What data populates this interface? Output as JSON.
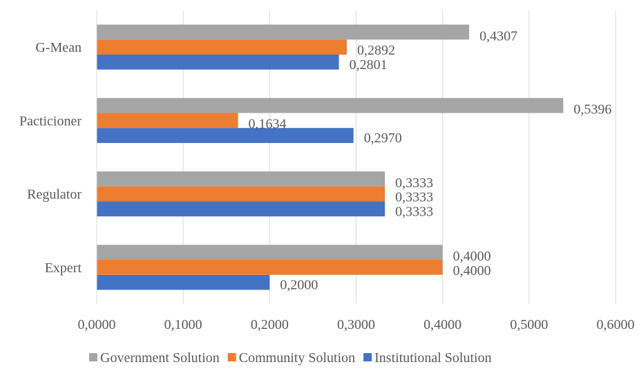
{
  "chart_data": {
    "type": "bar",
    "orientation": "horizontal",
    "title": "",
    "xlabel": "",
    "ylabel": "",
    "categories": [
      "Expert",
      "Regulator",
      "Pacticioner",
      "G-Mean"
    ],
    "series": [
      {
        "name": "Institutional Solution",
        "color": "#4472C4",
        "values": [
          0.2,
          0.3333,
          0.297,
          0.2801
        ],
        "labels": [
          "0,2000",
          "0,3333",
          "0,2970",
          "0,2801"
        ]
      },
      {
        "name": "Community Solution",
        "color": "#ED7D31",
        "values": [
          0.4,
          0.3333,
          0.1634,
          0.2892
        ],
        "labels": [
          "0,4000",
          "0,3333",
          "0,1634",
          "0,2892"
        ]
      },
      {
        "name": "Government Solution",
        "color": "#A5A5A5",
        "values": [
          0.4,
          0.3333,
          0.5396,
          0.4307
        ],
        "labels": [
          "0,4000",
          "0,3333",
          "0,5396",
          "0,4307"
        ]
      }
    ],
    "xlim": [
      0,
      0.6
    ],
    "x_ticks": [
      0,
      0.1,
      0.2,
      0.3,
      0.4,
      0.5,
      0.6
    ],
    "x_tick_labels": [
      "0,0000",
      "0,1000",
      "0,2000",
      "0,3000",
      "0,4000",
      "0,5000",
      "0,6000"
    ],
    "grid": "vertical",
    "legend": {
      "position": "bottom",
      "order": [
        "Government Solution",
        "Community Solution",
        "Institutional Solution"
      ]
    }
  }
}
